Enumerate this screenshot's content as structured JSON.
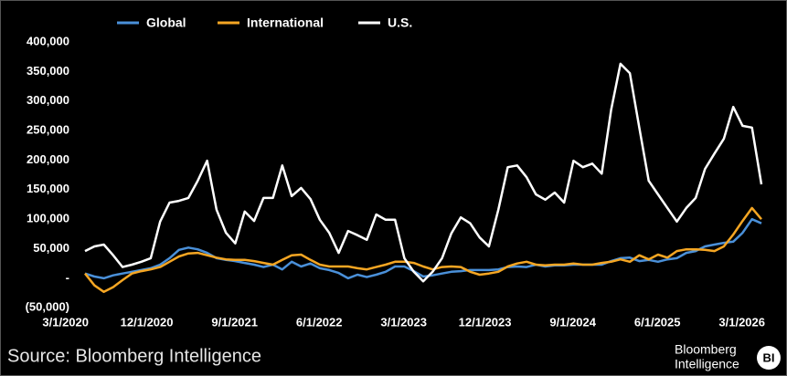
{
  "chart_data": {
    "type": "line",
    "categories": [
      "3/1/2020",
      null,
      null,
      null,
      null,
      null,
      null,
      null,
      null,
      "12/1/2020",
      null,
      null,
      null,
      null,
      null,
      null,
      null,
      null,
      "9/1/2021",
      null,
      null,
      null,
      null,
      null,
      null,
      null,
      null,
      "6/1/2022",
      null,
      null,
      null,
      null,
      null,
      null,
      null,
      null,
      "3/1/2023",
      null,
      null,
      null,
      null,
      null,
      null,
      null,
      null,
      "12/1/2023",
      null,
      null,
      null,
      null,
      null,
      null,
      null,
      null,
      "9/1/2024",
      null,
      null,
      null,
      null,
      null,
      null,
      null,
      null,
      "6/1/2025",
      null,
      null,
      null,
      null,
      null,
      null,
      null,
      null,
      "3/1/2026"
    ],
    "series": [
      {
        "name": "Global",
        "color": "#4a90d9",
        "values": [
          8000,
          3000,
          0,
          5000,
          8000,
          11000,
          14000,
          17000,
          23000,
          34000,
          48000,
          52000,
          49000,
          43000,
          34000,
          31000,
          29000,
          26000,
          23000,
          19000,
          23000,
          15000,
          28000,
          20000,
          25000,
          17000,
          14000,
          9000,
          0,
          6000,
          2000,
          6000,
          11000,
          20000,
          20000,
          12000,
          3000,
          5000,
          8000,
          11000,
          12000,
          14000,
          14000,
          14000,
          15000,
          19000,
          20000,
          19000,
          23000,
          20000,
          22000,
          22000,
          23000,
          23000,
          23000,
          23000,
          29000,
          34000,
          35000,
          29000,
          31000,
          28000,
          32000,
          34000,
          43000,
          46000,
          54000,
          57000,
          60000,
          62000,
          77000,
          100000,
          93000
        ]
      },
      {
        "name": "International",
        "color": "#f5a623",
        "values": [
          8000,
          -12000,
          -23000,
          -15000,
          -3000,
          8000,
          12000,
          15000,
          19000,
          28000,
          37000,
          42000,
          43000,
          39000,
          35000,
          32000,
          31000,
          31000,
          29000,
          26000,
          23000,
          31000,
          39000,
          40000,
          31000,
          23000,
          20000,
          20000,
          20000,
          17000,
          15000,
          19000,
          23000,
          28000,
          28000,
          26000,
          20000,
          15000,
          19000,
          20000,
          19000,
          11000,
          6000,
          8000,
          11000,
          20000,
          25000,
          28000,
          23000,
          22000,
          23000,
          23000,
          25000,
          23000,
          23000,
          26000,
          28000,
          32000,
          28000,
          39000,
          32000,
          40000,
          35000,
          46000,
          49000,
          49000,
          48000,
          46000,
          54000,
          74000,
          97000,
          119000,
          100000
        ]
      },
      {
        "name": "U.S.",
        "color": "#ffffff",
        "values": [
          46000,
          54000,
          57000,
          39000,
          19000,
          23000,
          28000,
          34000,
          96000,
          128000,
          131000,
          136000,
          165000,
          199000,
          116000,
          77000,
          59000,
          113000,
          97000,
          136000,
          136000,
          191000,
          139000,
          153000,
          134000,
          99000,
          77000,
          43000,
          80000,
          73000,
          65000,
          108000,
          99000,
          99000,
          34000,
          11000,
          -5000,
          11000,
          34000,
          76000,
          103000,
          93000,
          69000,
          54000,
          116000,
          188000,
          191000,
          171000,
          142000,
          133000,
          145000,
          128000,
          199000,
          188000,
          194000,
          177000,
          285000,
          363000,
          347000,
          255000,
          165000,
          142000,
          119000,
          96000,
          119000,
          136000,
          185000,
          211000,
          236000,
          290000,
          258000,
          255000,
          159000
        ]
      }
    ],
    "ylim": [
      -65000,
      420000
    ],
    "yticks": [
      {
        "value": -50000,
        "label": "(50,000)"
      },
      {
        "value": 0,
        "label": "-"
      },
      {
        "value": 50000,
        "label": "50,000"
      },
      {
        "value": 100000,
        "label": "100,000"
      },
      {
        "value": 150000,
        "label": "150,000"
      },
      {
        "value": 200000,
        "label": "200,000"
      },
      {
        "value": 250000,
        "label": "250,000"
      },
      {
        "value": 300000,
        "label": "300,000"
      },
      {
        "value": 350000,
        "label": "350,000"
      },
      {
        "value": 400000,
        "label": "400,000"
      }
    ],
    "grid": false,
    "legend": "top",
    "source": "Source: Bloomberg Intelligence",
    "brand": [
      "Bloomberg",
      "Intelligence"
    ],
    "badge": "BI"
  }
}
